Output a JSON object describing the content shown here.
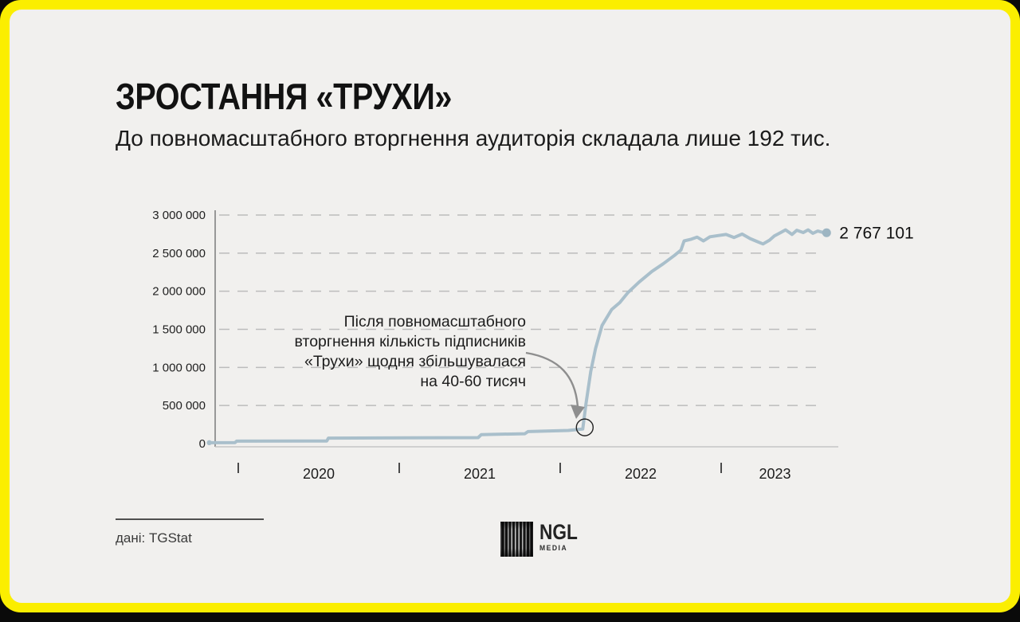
{
  "page": {
    "bg_color": "#0a0a0a",
    "frame_color": "#FBEE00",
    "canvas_color": "#F1F0EE"
  },
  "header": {
    "title": "ЗРОСТАННЯ «ТРУХИ»",
    "subtitle": "До повномасштабного вторгнення аудиторія складала лише 192 тис."
  },
  "chart_data": {
    "type": "line",
    "title": "",
    "xlabel": "",
    "ylabel": "",
    "ylim": [
      0,
      3000000
    ],
    "grid": true,
    "legend": "none",
    "line_color": "#A9BFCB",
    "y_ticks": [
      {
        "value": 3000000,
        "label": "3 000 000"
      },
      {
        "value": 2500000,
        "label": "2 500 000"
      },
      {
        "value": 2000000,
        "label": "2 000 000"
      },
      {
        "value": 1500000,
        "label": "1 500 000"
      },
      {
        "value": 1000000,
        "label": "1 000 000"
      },
      {
        "value": 500000,
        "label": "500 000"
      },
      {
        "value": 0,
        "label": "0"
      }
    ],
    "x_ticks": [
      {
        "year": 2020,
        "label": "2020"
      },
      {
        "year": 2021,
        "label": "2021"
      },
      {
        "year": 2022,
        "label": "2022"
      },
      {
        "year": 2023,
        "label": "2023"
      }
    ],
    "series": [
      [
        2019.82,
        12000
      ],
      [
        2019.98,
        14000
      ],
      [
        2019.99,
        32000
      ],
      [
        2020.55,
        34000
      ],
      [
        2020.56,
        72000
      ],
      [
        2021.49,
        78000
      ],
      [
        2021.51,
        118000
      ],
      [
        2021.78,
        130000
      ],
      [
        2021.8,
        158000
      ],
      [
        2022.05,
        172000
      ],
      [
        2022.14,
        192000
      ],
      [
        2022.16,
        520000
      ],
      [
        2022.19,
        950000
      ],
      [
        2022.22,
        1250000
      ],
      [
        2022.26,
        1550000
      ],
      [
        2022.32,
        1760000
      ],
      [
        2022.37,
        1850000
      ],
      [
        2022.42,
        1980000
      ],
      [
        2022.49,
        2120000
      ],
      [
        2022.57,
        2260000
      ],
      [
        2022.64,
        2360000
      ],
      [
        2022.71,
        2470000
      ],
      [
        2022.75,
        2540000
      ],
      [
        2022.77,
        2660000
      ],
      [
        2022.81,
        2680000
      ],
      [
        2022.85,
        2710000
      ],
      [
        2022.89,
        2660000
      ],
      [
        2022.93,
        2715000
      ],
      [
        2022.98,
        2730000
      ],
      [
        2023.03,
        2745000
      ],
      [
        2023.08,
        2705000
      ],
      [
        2023.13,
        2750000
      ],
      [
        2023.18,
        2690000
      ],
      [
        2023.22,
        2655000
      ],
      [
        2023.26,
        2620000
      ],
      [
        2023.3,
        2670000
      ],
      [
        2023.33,
        2725000
      ],
      [
        2023.37,
        2770000
      ],
      [
        2023.4,
        2805000
      ],
      [
        2023.44,
        2745000
      ],
      [
        2023.47,
        2800000
      ],
      [
        2023.51,
        2770000
      ],
      [
        2023.54,
        2805000
      ],
      [
        2023.57,
        2760000
      ],
      [
        2023.6,
        2790000
      ],
      [
        2023.64,
        2767101
      ]
    ],
    "end_value": 2767101,
    "end_label": "2 767 101",
    "annotation": {
      "lines": [
        "Після повномасштабного",
        "вторгнення кількість підписників",
        "«Трухи» щодня збільшувалася",
        "на 40-60 тисяч"
      ],
      "circled_point": {
        "year": 2022.15,
        "value": 192000
      }
    }
  },
  "footer": {
    "source": "дані: TGStat",
    "logo": {
      "name": "NGL",
      "sub": "MEDIA"
    }
  }
}
